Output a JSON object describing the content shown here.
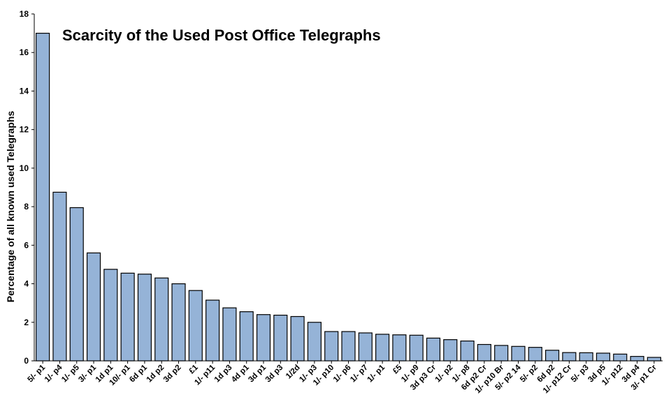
{
  "chart_data": {
    "type": "bar",
    "title": "Scarcity of the Used Post Office Telegraphs",
    "xlabel": "",
    "ylabel": "Percentage of all known used Telegraphs",
    "ylim": [
      0,
      18
    ],
    "yticks": [
      "0",
      "2",
      "4",
      "6",
      "8",
      "10",
      "12",
      "14",
      "16",
      "18"
    ],
    "grid": false,
    "legend": "none",
    "bar_color": "#95B3D7",
    "bar_edge_color": "#000000",
    "categories": [
      "5/- p1",
      "1/- p4",
      "1/- p5",
      "3/- p1",
      "1d p1",
      "10/- p1",
      "6d p1",
      "1d p2",
      "3d p2",
      "£1",
      "1/- p11",
      "1d p3",
      "4d p1",
      "3d p1",
      "3d p3",
      "1/2d",
      "1/- p3",
      "1/- p10",
      "1/- p6",
      "1/- p7",
      "1/- p1",
      "£5",
      "1/- p9",
      "3d p3 Cr",
      "1/- p2",
      "1/- p8",
      "6d p2 Cr",
      "1/- p10 Br",
      "5/- p2 14",
      "5/- p2",
      "6d p2",
      "1/- p12 Cr",
      "5/- p3",
      "3d p5",
      "1/- p12",
      "3d p4",
      "3/- p1 Cr"
    ],
    "values": [
      17.0,
      8.75,
      7.95,
      5.6,
      4.75,
      4.55,
      4.5,
      4.3,
      4.0,
      3.65,
      3.15,
      2.75,
      2.55,
      2.4,
      2.37,
      2.3,
      2.0,
      1.52,
      1.52,
      1.45,
      1.38,
      1.35,
      1.33,
      1.18,
      1.1,
      1.03,
      0.85,
      0.8,
      0.75,
      0.7,
      0.55,
      0.43,
      0.42,
      0.4,
      0.35,
      0.23,
      0.18
    ]
  }
}
